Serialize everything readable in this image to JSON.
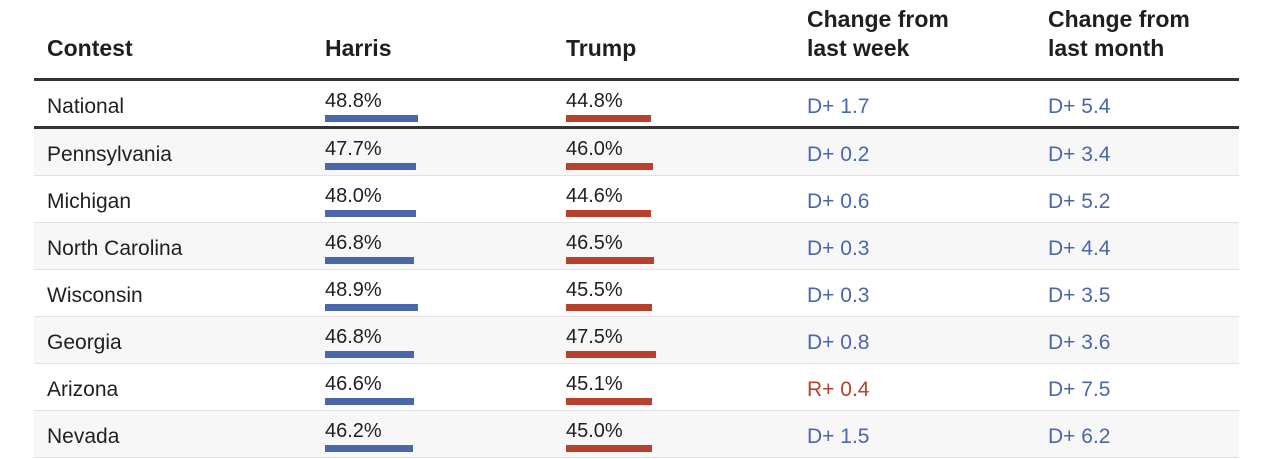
{
  "colors": {
    "harris": "#4a67ab",
    "trump": "#b6412f"
  },
  "chart_data": {
    "type": "table",
    "columns": [
      "Contest",
      "Harris",
      "Trump",
      "Change from\nlast week",
      "Change from\nlast month"
    ],
    "bar_scale_max": 100,
    "rows": [
      {
        "contest": "National",
        "harris": 48.8,
        "trump": 44.8,
        "harris_label": "48.8%",
        "trump_label": "44.8%",
        "week": "D+ 1.7",
        "week_party": "D",
        "month": "D+ 5.4",
        "month_party": "D"
      },
      {
        "contest": "Pennsylvania",
        "harris": 47.7,
        "trump": 46.0,
        "harris_label": "47.7%",
        "trump_label": "46.0%",
        "week": "D+ 0.2",
        "week_party": "D",
        "month": "D+ 3.4",
        "month_party": "D"
      },
      {
        "contest": "Michigan",
        "harris": 48.0,
        "trump": 44.6,
        "harris_label": "48.0%",
        "trump_label": "44.6%",
        "week": "D+ 0.6",
        "week_party": "D",
        "month": "D+ 5.2",
        "month_party": "D"
      },
      {
        "contest": "North Carolina",
        "harris": 46.8,
        "trump": 46.5,
        "harris_label": "46.8%",
        "trump_label": "46.5%",
        "week": "D+ 0.3",
        "week_party": "D",
        "month": "D+ 4.4",
        "month_party": "D"
      },
      {
        "contest": "Wisconsin",
        "harris": 48.9,
        "trump": 45.5,
        "harris_label": "48.9%",
        "trump_label": "45.5%",
        "week": "D+ 0.3",
        "week_party": "D",
        "month": "D+ 3.5",
        "month_party": "D"
      },
      {
        "contest": "Georgia",
        "harris": 46.8,
        "trump": 47.5,
        "harris_label": "46.8%",
        "trump_label": "47.5%",
        "week": "D+ 0.8",
        "week_party": "D",
        "month": "D+ 3.6",
        "month_party": "D"
      },
      {
        "contest": "Arizona",
        "harris": 46.6,
        "trump": 45.1,
        "harris_label": "46.6%",
        "trump_label": "45.1%",
        "week": "R+ 0.4",
        "week_party": "R",
        "month": "D+ 7.5",
        "month_party": "D"
      },
      {
        "contest": "Nevada",
        "harris": 46.2,
        "trump": 45.0,
        "harris_label": "46.2%",
        "trump_label": "45.0%",
        "week": "D+ 1.5",
        "week_party": "D",
        "month": "D+ 6.2",
        "month_party": "D"
      }
    ]
  }
}
